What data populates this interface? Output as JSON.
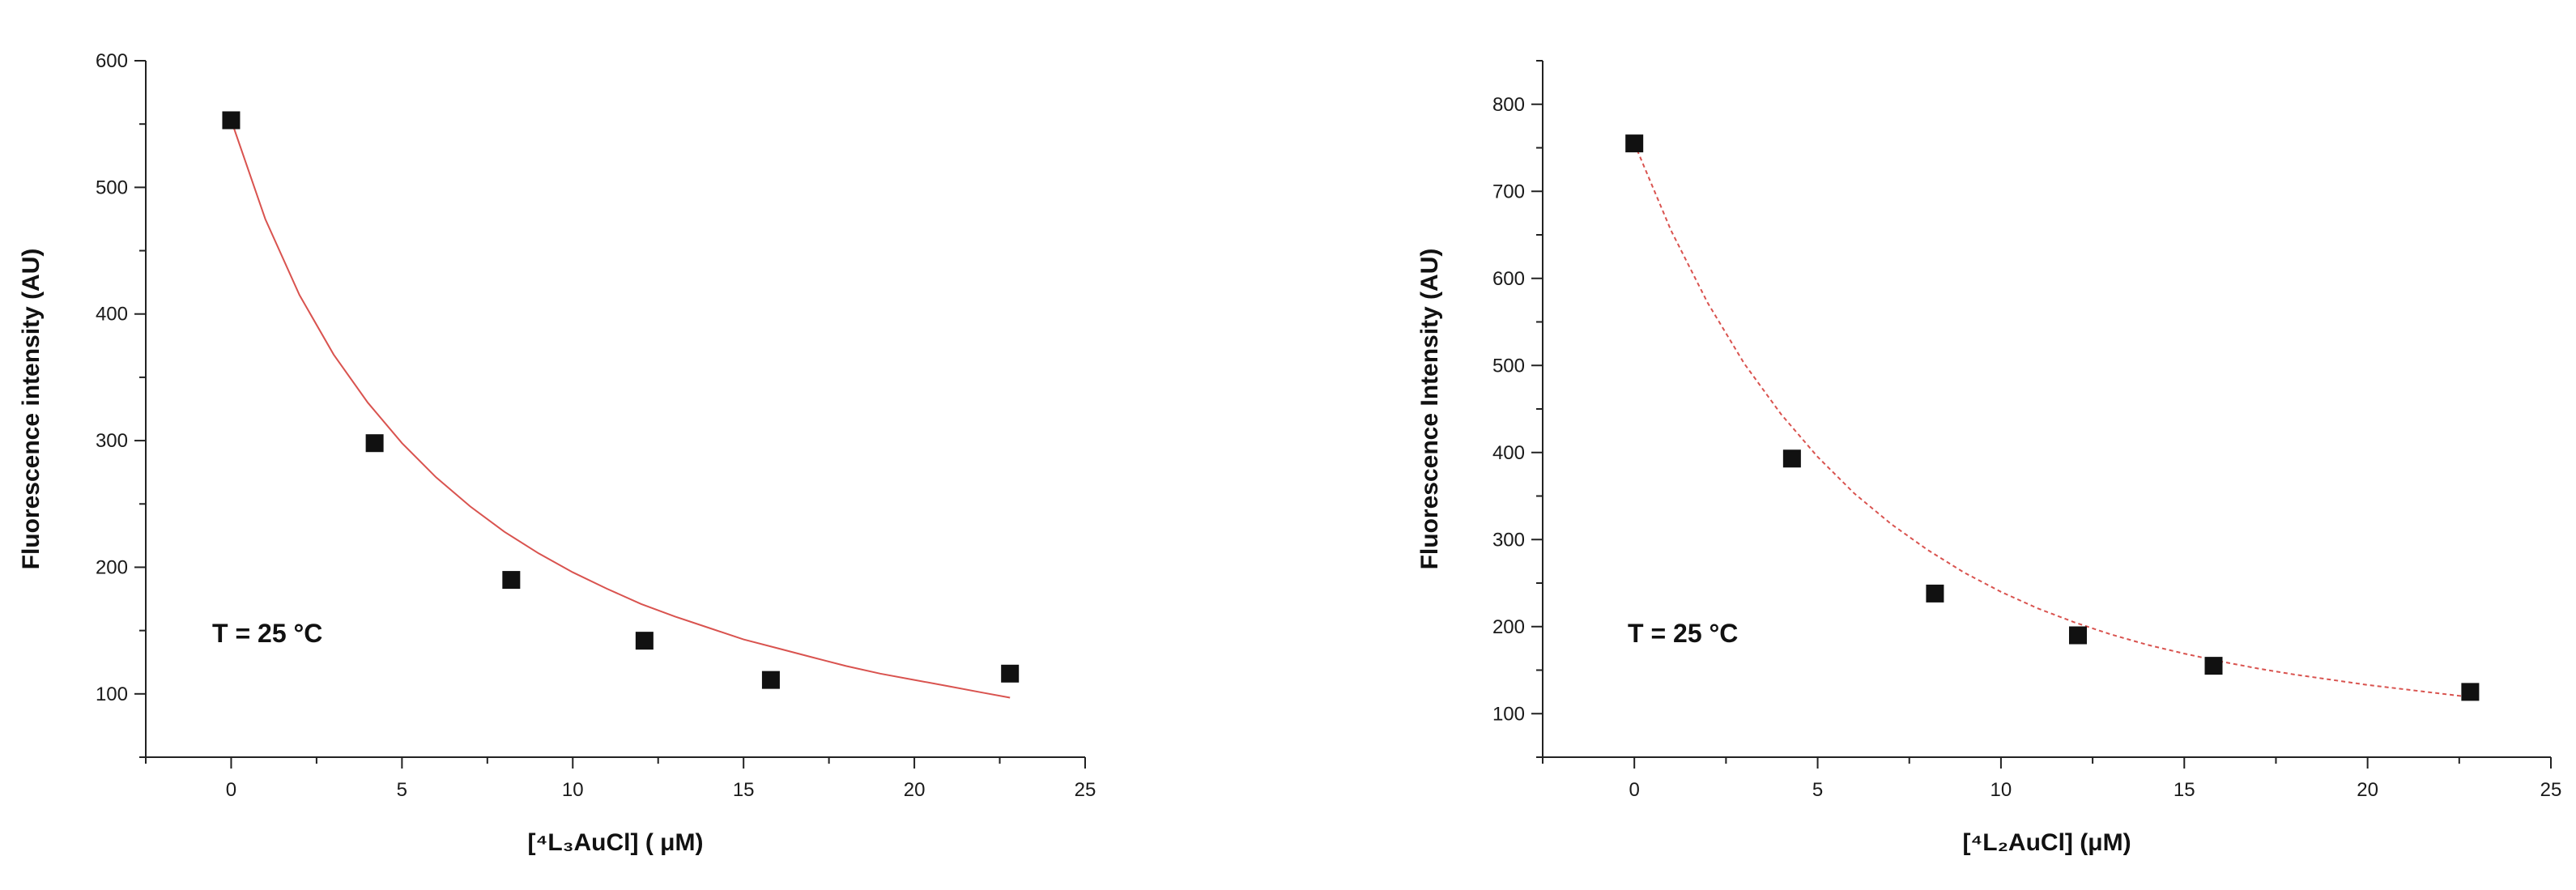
{
  "chart_data": [
    {
      "type": "scatter",
      "xlabel": "[⁴L₃AuCl] ( μM)",
      "ylabel": "Fluorescence intensity (AU)",
      "annotation": "T = 25 °C",
      "xlim": [
        -2.5,
        25
      ],
      "ylim": [
        50,
        600
      ],
      "xticks": [
        0,
        5,
        10,
        15,
        20,
        25
      ],
      "yticks": [
        100,
        200,
        300,
        400,
        500,
        600
      ],
      "grid": false,
      "series": [
        {
          "marker": "square",
          "x": [
            0,
            4.2,
            8.2,
            12.1,
            15.8,
            22.8
          ],
          "y": [
            553,
            298,
            190,
            142,
            111,
            116
          ]
        }
      ],
      "fit": {
        "style": "solid",
        "color": "#d9534f",
        "x": [
          0,
          1,
          2,
          3,
          4,
          5,
          6,
          7,
          8,
          9,
          10,
          11,
          12,
          13,
          14,
          15,
          16,
          17,
          18,
          19,
          20,
          21,
          22,
          22.8
        ],
        "y": [
          553,
          475,
          415,
          368,
          330,
          298,
          271,
          248,
          228,
          211,
          196,
          183,
          171,
          161,
          152,
          143,
          136,
          129,
          122,
          116,
          111,
          106,
          101,
          97
        ]
      }
    },
    {
      "type": "scatter",
      "xlabel": "[⁴L₂AuCl] (μM)",
      "ylabel": "Fluorescence Intensity (AU)",
      "annotation": "T = 25 °C",
      "xlim": [
        -2.5,
        25
      ],
      "ylim": [
        50,
        850
      ],
      "xticks": [
        0,
        5,
        10,
        15,
        20,
        25
      ],
      "yticks": [
        100,
        200,
        300,
        400,
        500,
        600,
        700,
        800
      ],
      "grid": false,
      "series": [
        {
          "marker": "square",
          "x": [
            0,
            4.3,
            8.2,
            12.1,
            15.8,
            22.8
          ],
          "y": [
            755,
            393,
            238,
            190,
            155,
            125
          ]
        }
      ],
      "fit": {
        "style": "dashed",
        "color": "#d9534f",
        "x": [
          0,
          1,
          2,
          3,
          4,
          5,
          6,
          7,
          8,
          9,
          10,
          11,
          12,
          13,
          14,
          15,
          16,
          17,
          18,
          19,
          20,
          21,
          22,
          22.8
        ],
        "y": [
          755,
          655,
          572,
          502,
          444,
          395,
          353,
          318,
          288,
          262,
          240,
          221,
          205,
          191,
          179,
          169,
          160,
          152,
          145,
          139,
          133,
          128,
          123,
          119
        ]
      }
    }
  ]
}
